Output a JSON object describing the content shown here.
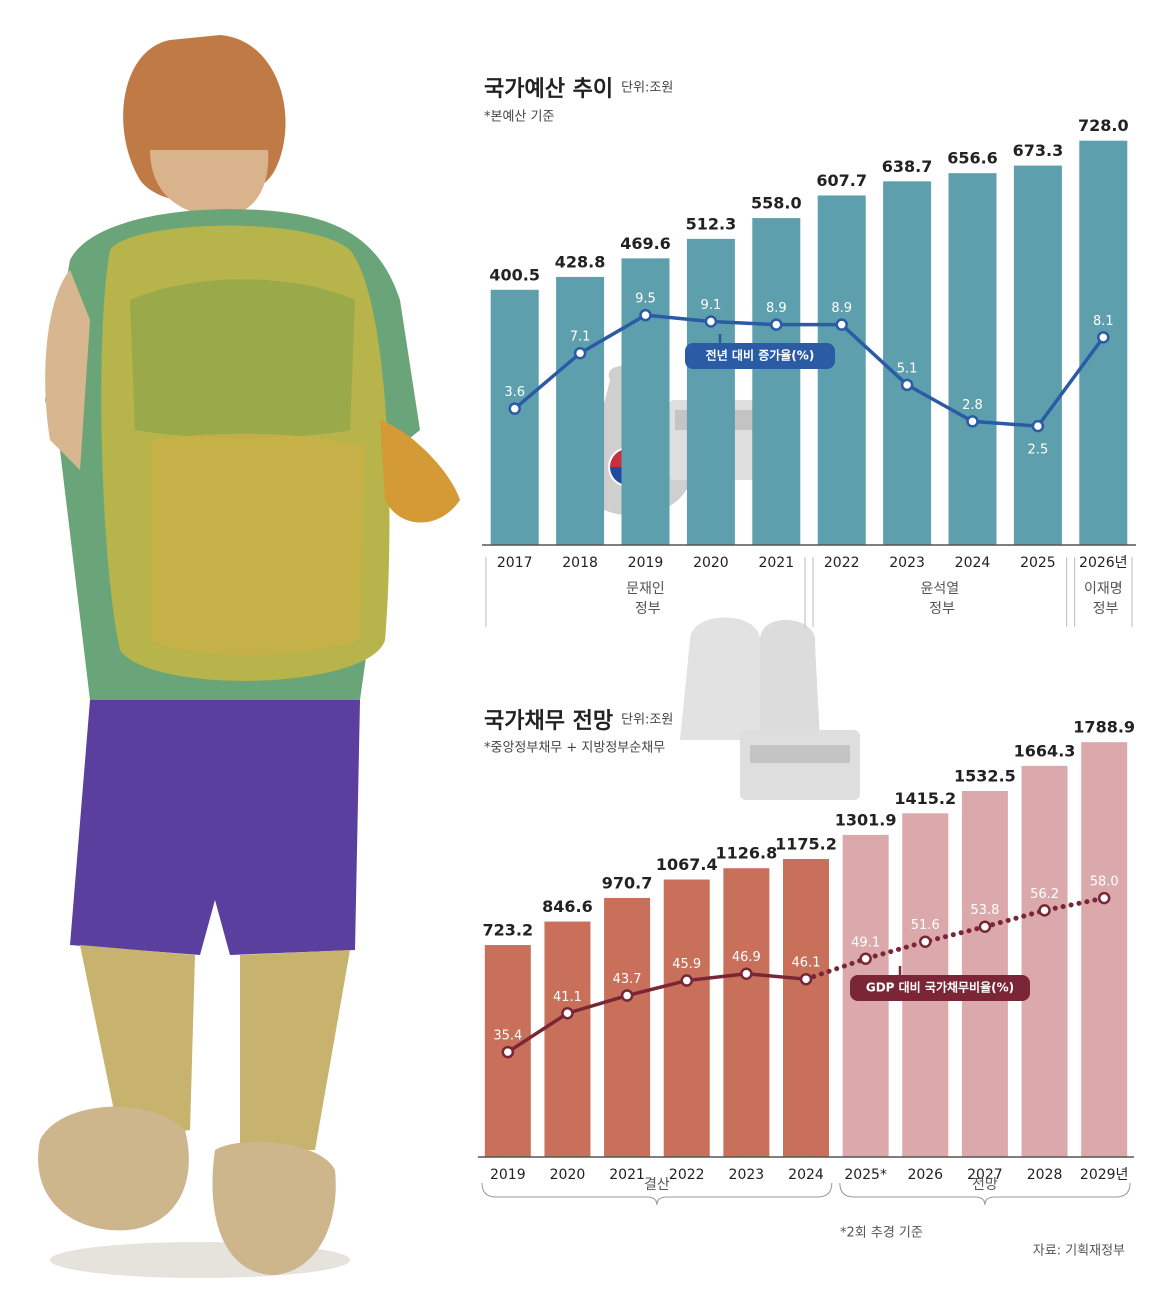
{
  "chart_data": [
    {
      "type": "bar",
      "title": "국가예산 추이",
      "unit": "단위:조원",
      "note": "*본예산 기준",
      "categories": [
        "2017",
        "2018",
        "2019",
        "2020",
        "2021",
        "2022",
        "2023",
        "2024",
        "2025",
        "2026년"
      ],
      "series": [
        {
          "name": "국가예산",
          "type": "bar",
          "color": "#5e9fae",
          "values": [
            400.5,
            428.8,
            469.6,
            512.3,
            558.0,
            607.7,
            638.7,
            656.6,
            673.3,
            728.0
          ],
          "value_labels": [
            "400.5",
            "428.8",
            "469.6",
            "512.3",
            "558.0",
            "607.7",
            "638.7",
            "656.6",
            "673.3",
            "728.0"
          ]
        },
        {
          "name": "전년 대비 증가율(%)",
          "type": "line",
          "axis": "y2",
          "color": "#2c5ba6",
          "values": [
            3.6,
            7.1,
            9.5,
            9.1,
            8.9,
            8.9,
            5.1,
            2.8,
            2.5,
            8.1
          ]
        }
      ],
      "groups": [
        {
          "label": "문재인 정부",
          "start": 0,
          "end": 4
        },
        {
          "label": "윤석열 정부",
          "start": 5,
          "end": 8
        },
        {
          "label": "이재명 정부",
          "start": 9,
          "end": 9
        }
      ],
      "ylim": [
        -160,
        780
      ],
      "y2lim": [
        -5,
        22
      ]
    },
    {
      "type": "bar",
      "title": "국가채무 전망",
      "unit": "단위:조원",
      "note": "*중앙정부채무 + 지방정부순채무",
      "categories": [
        "2019",
        "2020",
        "2021",
        "2022",
        "2023",
        "2024",
        "2025*",
        "2026",
        "2027",
        "2028",
        "2029년"
      ],
      "forecast_start": 6,
      "series": [
        {
          "name": "국가채무",
          "type": "bar",
          "color": "#c8705a",
          "forecast_color": "#dba9ab",
          "values": [
            723.2,
            846.6,
            970.7,
            1067.4,
            1126.8,
            1175.2,
            1301.9,
            1415.2,
            1532.5,
            1664.3,
            1788.9
          ]
        },
        {
          "name": "GDP 대비 국가채무비율(%)",
          "type": "line",
          "axis": "y2",
          "color": "#7a2636",
          "values": [
            35.4,
            41.1,
            43.7,
            45.9,
            46.9,
            46.1,
            49.1,
            51.6,
            53.8,
            56.2,
            58.0
          ],
          "value_labels": [
            "35.4",
            "41.1",
            "43.7",
            "45.9",
            "46.9",
            "46.1",
            "49.1",
            "51.6",
            "53.8",
            "56.2",
            "58.0"
          ]
        }
      ],
      "groups": [
        {
          "label": "결산",
          "start": 0,
          "end": 5
        },
        {
          "label": "전망",
          "start": 6,
          "end": 10
        }
      ],
      "footnote": "*2회 추경 기준",
      "source": "자료: 기획재정부",
      "ylim": [
        -390,
        1900
      ],
      "y2lim": [
        20,
        84
      ]
    }
  ]
}
